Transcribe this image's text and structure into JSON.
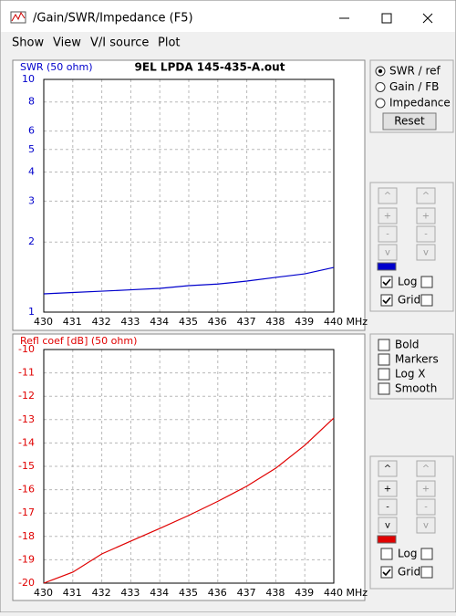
{
  "window": {
    "title": "/Gain/SWR/Impedance (F5)",
    "menu": [
      "Show",
      "View",
      "V/I source",
      "Plot"
    ]
  },
  "chart_data": [
    {
      "type": "line",
      "title": "9EL LPDA 145-435-A.out",
      "ylabel": "SWR (50 ohm)",
      "x": [
        430,
        431,
        432,
        433,
        434,
        435,
        436,
        437,
        438,
        439,
        440
      ],
      "series": [
        {
          "name": "SWR (50 ohm)",
          "color": "#0000cc",
          "values": [
            1.198,
            1.214,
            1.23,
            1.247,
            1.265,
            1.299,
            1.32,
            1.359,
            1.41,
            1.46,
            1.556
          ]
        }
      ],
      "xlim": [
        430,
        440
      ],
      "xticks": [
        430,
        431,
        432,
        433,
        434,
        435,
        436,
        437,
        438,
        439,
        {
          "value": 440,
          "label": "440 MHz"
        }
      ],
      "ylim": [
        1,
        10
      ],
      "yticks": [
        1,
        2,
        3,
        4,
        5,
        6,
        8,
        10
      ],
      "log_y": true,
      "grid": true
    },
    {
      "type": "line",
      "ylabel": "Refl coef [dB] (50 ohm)",
      "x": [
        430,
        431,
        432,
        433,
        434,
        435,
        436,
        437,
        438,
        439,
        440
      ],
      "series": [
        {
          "name": "Refl coef [dB] (50 ohm)",
          "color": "#e00000",
          "values": [
            -20,
            -19.53,
            -18.75,
            -18.2,
            -17.66,
            -17.1,
            -16.5,
            -15.85,
            -15.08,
            -14.1,
            -12.93
          ]
        }
      ],
      "xlim": [
        430,
        440
      ],
      "xticks": [
        430,
        431,
        432,
        433,
        434,
        435,
        436,
        437,
        438,
        439,
        {
          "value": 440,
          "label": "440 MHz"
        }
      ],
      "ylim": [
        -20,
        -10
      ],
      "yticks": [
        -20,
        -19,
        -18,
        -17,
        -16,
        -15,
        -14,
        -13,
        -12,
        -11,
        -10
      ],
      "log_y": false,
      "grid": true
    }
  ],
  "controls": {
    "mode": {
      "options": [
        "SWR / ref",
        "Gain / FB",
        "Impedance"
      ],
      "selected": 0
    },
    "reset": "Reset",
    "top_panel": {
      "buttons": [
        "^",
        "+",
        "-",
        "v"
      ],
      "log": "Log",
      "grid": "Grid",
      "log_checked": true,
      "grid_checked": true
    },
    "options": {
      "items": [
        "Bold",
        "Markers",
        "Log X",
        "Smooth"
      ]
    },
    "bottom_panel": {
      "buttons": [
        "^",
        "+",
        "-",
        "v"
      ],
      "log": "Log",
      "grid": "Grid",
      "log_checked": false,
      "grid_checked": true
    }
  }
}
